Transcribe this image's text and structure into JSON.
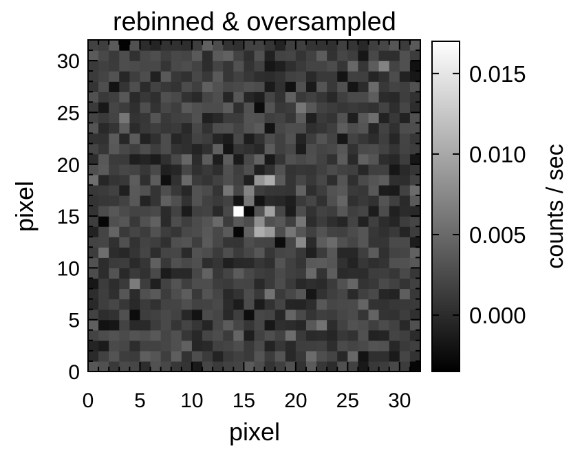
{
  "chart_data": {
    "type": "heatmap",
    "title": "rebinned & oversampled",
    "xlabel": "pixel",
    "ylabel": "pixel",
    "xlim": [
      0,
      32
    ],
    "ylim": [
      0,
      32
    ],
    "xticks": [
      "0",
      "5",
      "10",
      "15",
      "20",
      "25",
      "30"
    ],
    "yticks": [
      "0",
      "5",
      "10",
      "15",
      "20",
      "25",
      "30"
    ],
    "grid": false,
    "colormap": "grayscale (black to white)",
    "colorbar": {
      "label": "counts / sec",
      "range": [
        -0.0035,
        0.017
      ],
      "ticks": [
        {
          "value": 0.0,
          "label": "0.000"
        },
        {
          "value": 0.005,
          "label": "0.005"
        },
        {
          "value": 0.01,
          "label": "0.010"
        },
        {
          "value": 0.015,
          "label": "0.015"
        }
      ]
    },
    "grid_size": [
      32,
      32
    ],
    "noise_level_estimate": 0.0015,
    "background_mean_estimate": 0.0015,
    "features": [
      {
        "x": 14.5,
        "y": 15.5,
        "value": 0.0168,
        "note": "brightest pixel"
      },
      {
        "x": 15.5,
        "y": 15.0,
        "value": -0.003
      },
      {
        "x": 14.5,
        "y": 13.5,
        "value": -0.003
      },
      {
        "x": 14.5,
        "y": 16.5,
        "value": -0.002
      },
      {
        "x": 15.5,
        "y": 16.5,
        "value": 0.006
      },
      {
        "x": 16.5,
        "y": 16.5,
        "value": -0.002
      },
      {
        "x": 16.5,
        "y": 13.0,
        "value": 0.0105
      },
      {
        "x": 17.5,
        "y": 15.0,
        "value": 0.0095
      },
      {
        "x": 16.5,
        "y": 14.5,
        "value": 0.008
      },
      {
        "x": 17.5,
        "y": 13.5,
        "value": 0.009
      },
      {
        "x": 18.5,
        "y": 12.5,
        "value": -0.0025
      },
      {
        "x": 17.5,
        "y": 18.5,
        "value": 0.0105
      },
      {
        "x": 16.5,
        "y": 18.5,
        "value": 0.0085
      },
      {
        "x": 15.5,
        "y": 17.5,
        "value": 0.007
      },
      {
        "x": 20.5,
        "y": 12.5,
        "value": 0.0075
      },
      {
        "x": 19.5,
        "y": 13.5,
        "value": 0.006
      },
      {
        "x": 20.5,
        "y": 14.5,
        "value": 0.006
      },
      {
        "x": 13.5,
        "y": 17.5,
        "value": 0.006
      },
      {
        "x": 12.5,
        "y": 14.5,
        "value": 0.005
      },
      {
        "x": 1.5,
        "y": 14.0,
        "value": -0.003
      },
      {
        "x": 16.5,
        "y": 25.5,
        "value": -0.0025
      },
      {
        "x": 17.5,
        "y": 23.5,
        "value": -0.002
      },
      {
        "x": 4.5,
        "y": 5.5,
        "value": -0.0025
      },
      {
        "x": 10.5,
        "y": 5.0,
        "value": -0.002
      },
      {
        "x": 2.5,
        "y": 27.5,
        "value": -0.002
      },
      {
        "x": 26.5,
        "y": 1.5,
        "value": -0.002
      },
      {
        "x": 28.5,
        "y": 29.5,
        "value": 0.007
      },
      {
        "x": 20.5,
        "y": 25.5,
        "value": 0.006
      },
      {
        "x": 4.5,
        "y": 8.0,
        "value": 0.0065
      },
      {
        "x": 3.5,
        "y": 24.5,
        "value": 0.006
      },
      {
        "x": 31.5,
        "y": 0.5,
        "value": -0.003
      }
    ]
  }
}
